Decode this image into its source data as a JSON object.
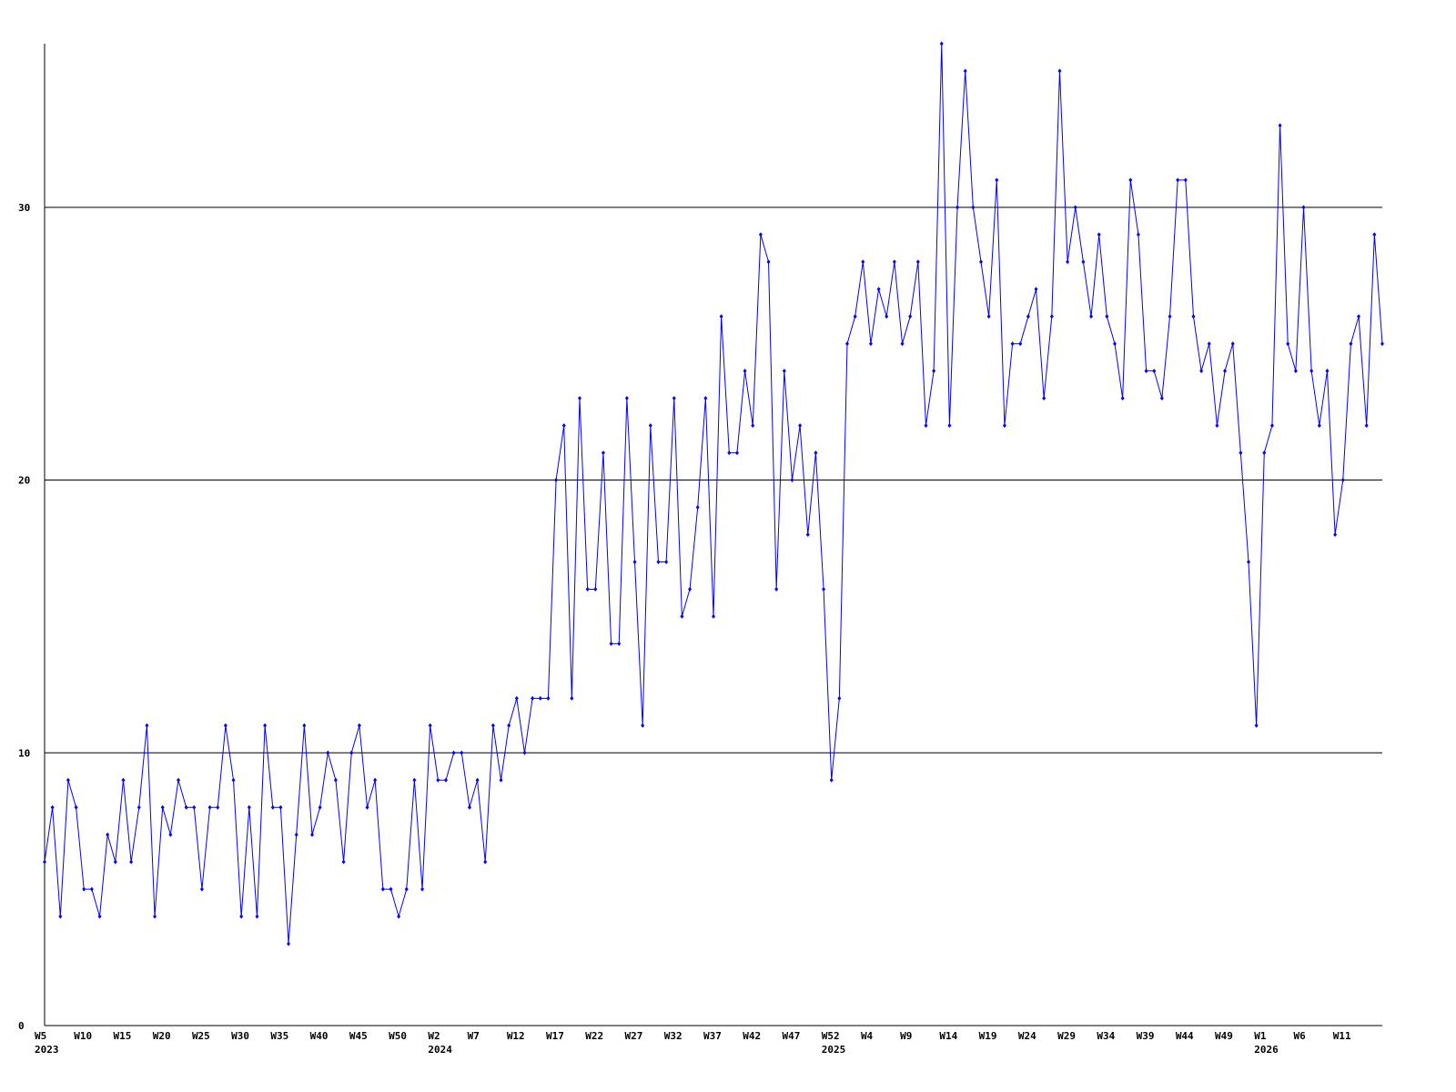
{
  "chart_data": {
    "type": "line",
    "categories": [
      "W5",
      null,
      null,
      null,
      null,
      "W10",
      null,
      null,
      null,
      null,
      "W15",
      null,
      null,
      null,
      null,
      "W20",
      null,
      null,
      null,
      null,
      "W25",
      null,
      null,
      null,
      null,
      "W30",
      null,
      null,
      null,
      null,
      "W35",
      null,
      null,
      null,
      null,
      "W40",
      null,
      null,
      null,
      null,
      "W45",
      null,
      null,
      null,
      null,
      "W50",
      null,
      null,
      null,
      null,
      "W2",
      null,
      null,
      null,
      null,
      "W7",
      null,
      null,
      null,
      null,
      "W12",
      null,
      null,
      null,
      null,
      "W17",
      null,
      null,
      null,
      null,
      "W22",
      null,
      null,
      null,
      null,
      "W27",
      null,
      null,
      null,
      null,
      "W32",
      null,
      null,
      null,
      null,
      "W37",
      null,
      null,
      null,
      null,
      "W42",
      null,
      null,
      null,
      null,
      "W47",
      null,
      null,
      null,
      null,
      "W52",
      null,
      null,
      null,
      null,
      "W4",
      null,
      null,
      null,
      null,
      "W9",
      null,
      null,
      null,
      null,
      "W14",
      null,
      null,
      null,
      null,
      "W19",
      null,
      null,
      null,
      null,
      "W24",
      null,
      null,
      null,
      null,
      "W29",
      null,
      null,
      null,
      null,
      "W34",
      null,
      null,
      null,
      null,
      "W39",
      null,
      null,
      null,
      null,
      "W44",
      null,
      null,
      null,
      null,
      "W49",
      null,
      null,
      null,
      null,
      "W1",
      null,
      null,
      null,
      null,
      "W6",
      null,
      null,
      null,
      null,
      "W11",
      null,
      null,
      null,
      null,
      null
    ],
    "category_years": [
      "2023",
      null,
      null,
      null,
      null,
      null,
      null,
      null,
      null,
      null,
      null,
      null,
      null,
      null,
      null,
      null,
      null,
      null,
      null,
      null,
      null,
      null,
      null,
      null,
      null,
      null,
      null,
      null,
      null,
      null,
      null,
      null,
      null,
      null,
      null,
      null,
      null,
      null,
      null,
      null,
      null,
      null,
      null,
      null,
      null,
      null,
      null,
      null,
      null,
      null,
      "2024",
      null,
      null,
      null,
      null,
      null,
      null,
      null,
      null,
      null,
      null,
      null,
      null,
      null,
      null,
      null,
      null,
      null,
      null,
      null,
      null,
      null,
      null,
      null,
      null,
      null,
      null,
      null,
      null,
      null,
      null,
      null,
      null,
      null,
      null,
      null,
      null,
      null,
      null,
      null,
      null,
      null,
      null,
      null,
      null,
      null,
      null,
      null,
      null,
      null,
      "2025",
      null,
      null,
      null,
      null,
      null,
      null,
      null,
      null,
      null,
      null,
      null,
      null,
      null,
      null,
      null,
      null,
      null,
      null,
      null,
      null,
      null,
      null,
      null,
      null,
      null,
      null,
      null,
      null,
      null,
      null,
      null,
      null,
      null,
      null,
      null,
      null,
      null,
      null,
      null,
      null,
      null,
      null,
      null,
      null,
      null,
      null,
      null,
      null,
      null,
      null,
      null,
      null,
      null,
      null,
      "2026",
      null,
      null,
      null,
      null,
      null,
      null,
      null,
      null,
      null,
      null,
      null,
      null,
      null,
      null,
      null
    ],
    "series": [
      {
        "color": "#0000ff",
        "values": [
          6,
          8,
          4,
          9,
          8,
          5,
          5,
          4,
          7,
          6,
          9,
          6,
          8,
          11,
          4,
          8,
          7,
          9,
          8,
          8,
          5,
          8,
          8,
          11,
          9,
          4,
          8,
          4,
          11,
          8,
          8,
          3,
          7,
          11,
          7,
          8,
          10,
          9,
          6,
          10,
          11,
          8,
          9,
          5,
          5,
          4,
          5,
          9,
          5,
          11,
          9,
          9,
          10,
          10,
          8,
          9,
          6,
          11,
          9,
          11,
          12,
          10,
          12,
          12,
          12,
          20,
          22,
          12,
          23,
          16,
          16,
          21,
          14,
          14,
          23,
          17,
          11,
          22,
          17,
          17,
          23,
          15,
          16,
          19,
          23,
          15,
          26,
          21,
          21,
          24,
          22,
          29,
          28,
          16,
          24,
          20,
          22,
          18,
          21,
          16,
          9,
          12,
          25,
          26,
          28,
          25,
          27,
          26,
          28,
          25,
          26,
          28,
          22,
          24,
          36,
          22,
          30,
          35,
          30,
          28,
          26,
          31,
          22,
          25,
          25,
          26,
          27,
          23,
          26,
          35,
          28,
          30,
          28,
          26,
          29,
          26,
          25,
          23,
          31,
          29,
          24,
          24,
          23,
          26,
          31,
          31,
          26,
          24,
          25,
          22,
          24,
          25,
          21,
          17,
          11,
          21,
          22,
          33,
          25,
          24,
          30,
          24,
          22,
          24,
          18,
          20,
          25,
          26,
          22,
          29,
          25
        ]
      }
    ],
    "ylim": [
      0,
      36
    ],
    "yticks": [
      0,
      10,
      20,
      30
    ],
    "grid": true
  }
}
